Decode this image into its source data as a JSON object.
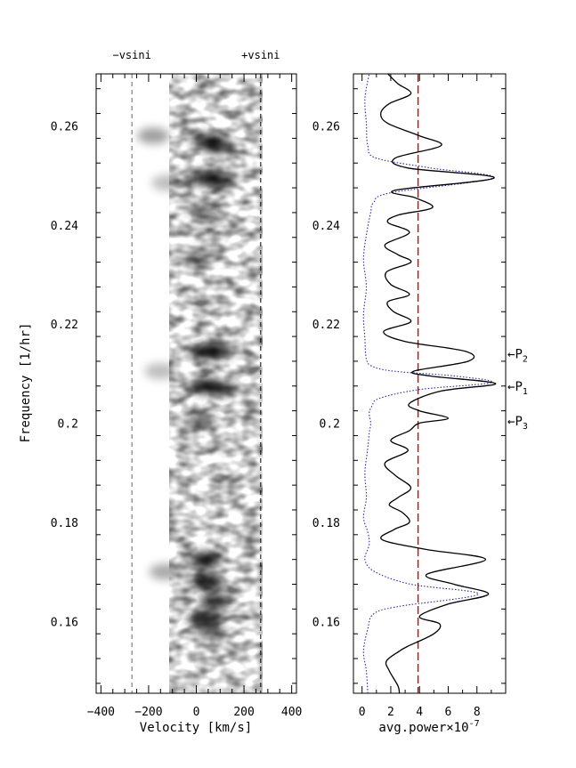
{
  "chart_data": [
    {
      "type": "heatmap",
      "panel": "left",
      "xlabel": "Velocity [km/s]",
      "ylabel": "Frequency [1/hr]",
      "xlim": [
        -420,
        420
      ],
      "ylim": [
        0.1455,
        0.2705
      ],
      "xticks": [
        -400,
        -200,
        0,
        200,
        400
      ],
      "yticks": [
        0.16,
        0.18,
        0.2,
        0.22,
        0.24,
        0.26
      ],
      "ytick_labels": [
        "0.16",
        "0.18",
        "0.2",
        "0.22",
        "0.24",
        "0.26"
      ],
      "vsini_lines": [
        {
          "label": "−vsini",
          "x": -270
        },
        {
          "label": "+vsini",
          "x": 270
        }
      ],
      "blobs": [
        {
          "v": 40,
          "f": 0.257,
          "intensity": 0.75
        },
        {
          "v": 90,
          "f": 0.256,
          "intensity": 0.9
        },
        {
          "v": 40,
          "f": 0.2495,
          "intensity": 0.95
        },
        {
          "v": 100,
          "f": 0.249,
          "intensity": 0.8
        },
        {
          "v": 10,
          "f": 0.2435,
          "intensity": 0.4
        },
        {
          "v": 60,
          "f": 0.2415,
          "intensity": 0.45
        },
        {
          "v": 10,
          "f": 0.2335,
          "intensity": 0.55
        },
        {
          "v": 40,
          "f": 0.2145,
          "intensity": 1.0
        },
        {
          "v": 90,
          "f": 0.2145,
          "intensity": 0.8
        },
        {
          "v": 40,
          "f": 0.2075,
          "intensity": 1.0
        },
        {
          "v": 110,
          "f": 0.207,
          "intensity": 0.7
        },
        {
          "v": 20,
          "f": 0.2005,
          "intensity": 0.6
        },
        {
          "v": 40,
          "f": 0.1725,
          "intensity": 1.0
        },
        {
          "v": 50,
          "f": 0.168,
          "intensity": 1.0
        },
        {
          "v": 80,
          "f": 0.164,
          "intensity": 0.9
        },
        {
          "v": 30,
          "f": 0.1605,
          "intensity": 0.9
        },
        {
          "v": 60,
          "f": 0.158,
          "intensity": 0.6
        },
        {
          "v": -130,
          "f": 0.17,
          "intensity": 0.4
        },
        {
          "v": -180,
          "f": 0.258,
          "intensity": 0.45
        },
        {
          "v": -120,
          "f": 0.2485,
          "intensity": 0.3
        },
        {
          "v": -150,
          "f": 0.2105,
          "intensity": 0.3
        }
      ]
    },
    {
      "type": "line",
      "panel": "right",
      "xlabel": "avg.power×10",
      "xlabel_exponent": "-7",
      "ylabel": "",
      "xlim": [
        -0.6,
        10.0
      ],
      "ylim": [
        0.1455,
        0.2705
      ],
      "xticks": [
        0,
        2,
        4,
        6,
        8
      ],
      "yticks": [
        0.16,
        0.18,
        0.2,
        0.22,
        0.24,
        0.26
      ],
      "ytick_labels": [
        "0.16",
        "0.18",
        "0.2",
        "0.22",
        "0.24",
        "0.26"
      ],
      "threshold": {
        "x": 3.9,
        "color": "#cc0000"
      },
      "series": [
        {
          "color": "#000000",
          "style": "solid",
          "points": [
            [
              2.6,
              0.1455
            ],
            [
              2.5,
              0.147
            ],
            [
              1.9,
              0.15
            ],
            [
              1.7,
              0.152
            ],
            [
              2.6,
              0.154
            ],
            [
              3.2,
              0.155
            ],
            [
              5.0,
              0.1575
            ],
            [
              5.4,
              0.1595
            ],
            [
              4.0,
              0.161
            ],
            [
              6.0,
              0.1635
            ],
            [
              8.8,
              0.1655
            ],
            [
              6.4,
              0.1675
            ],
            [
              4.5,
              0.1695
            ],
            [
              8.6,
              0.1725
            ],
            [
              4.5,
              0.1745
            ],
            [
              1.4,
              0.1765
            ],
            [
              2.2,
              0.1785
            ],
            [
              3.3,
              0.18
            ],
            [
              2.8,
              0.182
            ],
            [
              1.9,
              0.1835
            ],
            [
              2.5,
              0.185
            ],
            [
              3.4,
              0.187
            ],
            [
              2.3,
              0.1895
            ],
            [
              1.6,
              0.192
            ],
            [
              3.2,
              0.1945
            ],
            [
              2.0,
              0.1965
            ],
            [
              3.3,
              0.1985
            ],
            [
              4.0,
              0.2
            ],
            [
              6.0,
              0.201
            ],
            [
              4.0,
              0.2025
            ],
            [
              3.3,
              0.204
            ],
            [
              5.5,
              0.2065
            ],
            [
              9.3,
              0.208
            ],
            [
              4.8,
              0.2095
            ],
            [
              3.6,
              0.2105
            ],
            [
              7.4,
              0.2125
            ],
            [
              7.2,
              0.2145
            ],
            [
              3.0,
              0.2165
            ],
            [
              1.5,
              0.2185
            ],
            [
              3.4,
              0.2205
            ],
            [
              2.2,
              0.2225
            ],
            [
              1.8,
              0.2245
            ],
            [
              3.3,
              0.226
            ],
            [
              2.0,
              0.228
            ],
            [
              1.7,
              0.2305
            ],
            [
              3.4,
              0.2325
            ],
            [
              2.5,
              0.234
            ],
            [
              1.6,
              0.236
            ],
            [
              3.3,
              0.2385
            ],
            [
              1.8,
              0.2405
            ],
            [
              2.5,
              0.242
            ],
            [
              4.9,
              0.2435
            ],
            [
              3.7,
              0.2455
            ],
            [
              2.3,
              0.247
            ],
            [
              9.2,
              0.2495
            ],
            [
              3.2,
              0.2515
            ],
            [
              2.3,
              0.2535
            ],
            [
              5.5,
              0.256
            ],
            [
              4.0,
              0.258
            ],
            [
              1.8,
              0.2605
            ],
            [
              1.3,
              0.2625
            ],
            [
              1.9,
              0.2645
            ],
            [
              3.4,
              0.2665
            ],
            [
              2.5,
              0.2685
            ],
            [
              1.8,
              0.2705
            ]
          ]
        },
        {
          "color": "#2a2aa0",
          "style": "dotted",
          "points": [
            [
              0.4,
              0.1455
            ],
            [
              0.3,
              0.15
            ],
            [
              0.1,
              0.154
            ],
            [
              0.4,
              0.1585
            ],
            [
              0.8,
              0.1615
            ],
            [
              2.5,
              0.163
            ],
            [
              8.1,
              0.1655
            ],
            [
              3.4,
              0.1675
            ],
            [
              0.9,
              0.17
            ],
            [
              0.2,
              0.1725
            ],
            [
              0.5,
              0.1755
            ],
            [
              0.4,
              0.178
            ],
            [
              0.1,
              0.181
            ],
            [
              0.3,
              0.185
            ],
            [
              0.2,
              0.19
            ],
            [
              0.4,
              0.195
            ],
            [
              0.5,
              0.198
            ],
            [
              0.6,
              0.2
            ],
            [
              0.5,
              0.202
            ],
            [
              0.7,
              0.2035
            ],
            [
              1.2,
              0.205
            ],
            [
              4.0,
              0.2068
            ],
            [
              9.0,
              0.2082
            ],
            [
              6.5,
              0.2095
            ],
            [
              2.2,
              0.2105
            ],
            [
              0.7,
              0.2115
            ],
            [
              0.3,
              0.213
            ],
            [
              0.2,
              0.217
            ],
            [
              0.1,
              0.222
            ],
            [
              0.3,
              0.2275
            ],
            [
              0.1,
              0.233
            ],
            [
              0.3,
              0.238
            ],
            [
              0.6,
              0.2425
            ],
            [
              0.8,
              0.2445
            ],
            [
              2.0,
              0.2465
            ],
            [
              9.1,
              0.2495
            ],
            [
              4.8,
              0.2515
            ],
            [
              1.0,
              0.2535
            ],
            [
              0.4,
              0.256
            ],
            [
              0.3,
              0.2605
            ],
            [
              0.2,
              0.2655
            ],
            [
              0.5,
              0.2705
            ]
          ]
        }
      ],
      "annotations": [
        {
          "label": "P",
          "sub": "2",
          "f": 0.214
        },
        {
          "label": "P",
          "sub": "1",
          "f": 0.2075
        },
        {
          "label": "P",
          "sub": "3",
          "f": 0.2005
        }
      ]
    }
  ]
}
